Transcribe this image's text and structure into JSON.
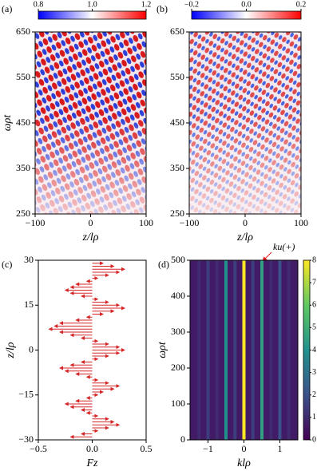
{
  "chart_data": [
    {
      "type": "heatmap",
      "panel_label": "(a)",
      "xlabel": "z/lρ",
      "ylabel": "ωρt",
      "xlim": [
        -100,
        100
      ],
      "xticks": [
        {
          "value": -100,
          "label": "−100"
        },
        0,
        100
      ],
      "ylim": [
        250,
        650
      ],
      "yticks": [
        250,
        350,
        450,
        550,
        650
      ],
      "clim": [
        0.8,
        1.2
      ],
      "cticks": [
        0.8,
        {
          "value": 1,
          "label": "1.0"
        },
        1.2
      ],
      "colormap": "bwr"
    },
    {
      "type": "heatmap",
      "panel_label": "(b)",
      "xlabel": "z/lρ",
      "xlim": [
        -100,
        100
      ],
      "xticks": [
        {
          "value": -100,
          "label": "−100"
        },
        0,
        100
      ],
      "ylim": [
        250,
        650
      ],
      "yticks": [
        250,
        350,
        450,
        550,
        650
      ],
      "clim": [
        -0.2,
        0.2
      ],
      "cticks": [
        {
          "value": -0.2,
          "label": "−0.2"
        },
        {
          "value": 0,
          "label": "0.0"
        },
        0.2
      ],
      "colormap": "bwr"
    },
    {
      "type": "quiver",
      "panel_label": "(c)",
      "xlabel": "Fz",
      "ylabel": "z/lρ",
      "color": "#d62728",
      "xlim": [
        -0.5,
        0.5
      ],
      "xticks": [
        {
          "value": -0.5,
          "label": "−0.5"
        },
        {
          "value": 0,
          "label": "0.0"
        },
        0.5
      ],
      "ylim": [
        -30,
        30
      ],
      "yticks": [
        {
          "value": -30,
          "label": "−30"
        },
        {
          "value": -15,
          "label": "−15"
        },
        0,
        15,
        30
      ],
      "y": [
        29,
        28,
        27,
        26,
        25,
        24,
        23,
        22,
        21,
        20,
        19,
        18,
        17,
        16,
        15,
        14,
        13,
        12,
        11,
        10,
        9,
        8,
        7,
        6,
        5,
        4,
        3,
        2,
        1,
        0,
        -1,
        -2,
        -3,
        -4,
        -5,
        -6,
        -7,
        -8,
        -9,
        -10,
        -11,
        -12,
        -13,
        -14,
        -15,
        -16,
        -17,
        -18,
        -19,
        -20,
        -21,
        -22,
        -23,
        -24,
        -25,
        -26,
        -27,
        -28,
        -29
      ],
      "values": [
        0.1,
        0.2,
        0.3,
        0.25,
        0.15,
        0.05,
        -0.05,
        -0.15,
        -0.2,
        -0.25,
        -0.2,
        -0.1,
        0.05,
        0.15,
        0.25,
        0.3,
        0.2,
        0.1,
        -0.05,
        -0.15,
        -0.3,
        -0.35,
        -0.4,
        -0.3,
        -0.2,
        -0.1,
        0.05,
        0.15,
        0.25,
        0.3,
        0.25,
        0.15,
        0.05,
        -0.1,
        -0.2,
        -0.3,
        -0.25,
        -0.15,
        -0.05,
        0.05,
        0.15,
        0.25,
        0.2,
        0.1,
        0.05,
        -0.05,
        -0.15,
        -0.25,
        -0.2,
        -0.1,
        -0.05,
        0.05,
        0.15,
        0.2,
        0.25,
        0.15,
        0.05,
        -0.1,
        -0.2
      ]
    },
    {
      "type": "stripes",
      "panel_label": "(d)",
      "xlabel": "klρ",
      "ylabel": "ωρt",
      "xlim": [
        -1.5,
        1.5
      ],
      "xticks": [
        {
          "value": -1,
          "label": "−1"
        },
        0,
        1
      ],
      "ylim": [
        0,
        500
      ],
      "yticks": [
        0,
        100,
        200,
        300,
        400,
        500
      ],
      "clim": [
        0,
        8
      ],
      "cticks": [
        0,
        1,
        2,
        3,
        4,
        5,
        6,
        7,
        8
      ],
      "colormap": "viridis",
      "x": [
        -1.25,
        -1.0,
        -0.75,
        -0.5,
        -0.25,
        0,
        0.25,
        0.5,
        0.75,
        1.0,
        1.25
      ],
      "values": [
        1,
        1.5,
        1,
        4,
        1.5,
        8,
        1.5,
        4.5,
        1,
        2,
        1
      ],
      "annotation": "ku(+)",
      "annotation_color": "#e41a1c"
    }
  ]
}
